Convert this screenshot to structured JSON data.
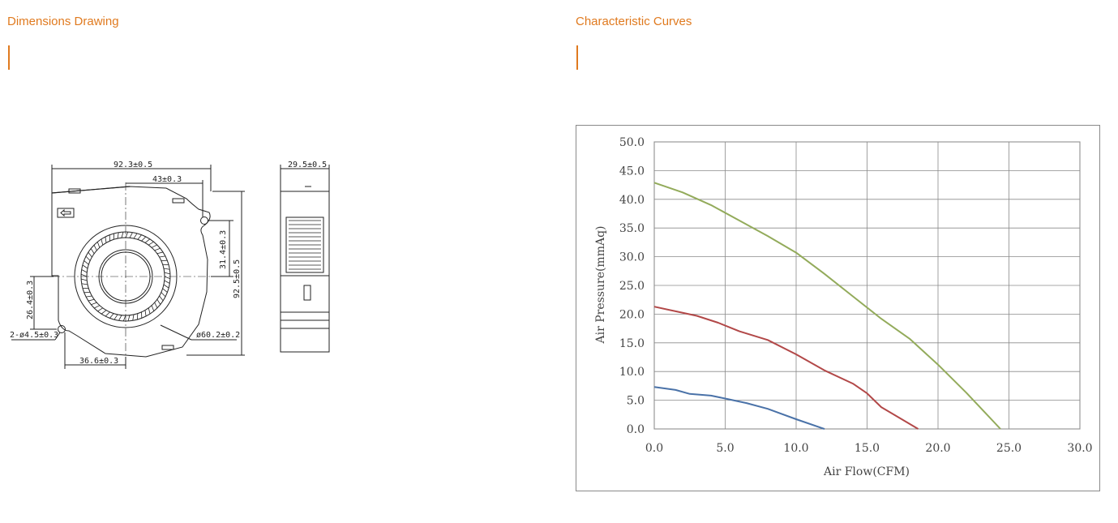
{
  "left_section": {
    "title": "Dimensions Drawing"
  },
  "right_section": {
    "title": "Characteristic Curves"
  },
  "accent_color": "#e07a1f",
  "drawing": {
    "dim_width": "92.3±0.5",
    "dim_top": "43±0.3",
    "dim_right_inner": "31.4±0.3",
    "dim_height": "92.5±0.5",
    "dim_left": "26.4±0.3",
    "dim_holes": "2-ø4.5±0.3",
    "dim_bottom": "36.6±0.3",
    "dim_diameter": "ø60.2±0.2",
    "dim_side_width": "29.5±0.5"
  },
  "chart_data": {
    "type": "line",
    "xlabel": "Air Flow(CFM)",
    "ylabel": "Air Pressure(mmAq)",
    "xlim": [
      0,
      30
    ],
    "ylim": [
      0,
      50
    ],
    "xticks": [
      "0.0",
      "5.0",
      "10.0",
      "15.0",
      "20.0",
      "25.0",
      "30.0"
    ],
    "yticks": [
      "0.0",
      "5.0",
      "10.0",
      "15.0",
      "20.0",
      "25.0",
      "30.0",
      "35.0",
      "40.0",
      "45.0",
      "50.0"
    ],
    "grid": true,
    "series": [
      {
        "color": "#4a72a8",
        "points": [
          [
            0,
            7.3
          ],
          [
            1.5,
            6.8
          ],
          [
            2.5,
            6.1
          ],
          [
            4,
            5.8
          ],
          [
            5,
            5.3
          ],
          [
            6.5,
            4.5
          ],
          [
            8,
            3.5
          ],
          [
            10,
            1.7
          ],
          [
            12,
            0
          ]
        ]
      },
      {
        "color": "#b24848",
        "points": [
          [
            0,
            21.3
          ],
          [
            1.5,
            20.5
          ],
          [
            3,
            19.7
          ],
          [
            4.5,
            18.5
          ],
          [
            6,
            17
          ],
          [
            8,
            15.5
          ],
          [
            10,
            13
          ],
          [
            12,
            10.2
          ],
          [
            14,
            7.9
          ],
          [
            15,
            6.2
          ],
          [
            16,
            3.8
          ],
          [
            18.6,
            0
          ]
        ]
      },
      {
        "color": "#93ab5b",
        "points": [
          [
            0,
            42.9
          ],
          [
            2,
            41.2
          ],
          [
            4,
            39
          ],
          [
            6,
            36.3
          ],
          [
            8,
            33.6
          ],
          [
            10,
            30.7
          ],
          [
            12,
            27
          ],
          [
            14,
            23.1
          ],
          [
            16,
            19.2
          ],
          [
            18,
            15.7
          ],
          [
            20,
            11.2
          ],
          [
            22,
            6.3
          ],
          [
            24.4,
            0
          ]
        ]
      }
    ]
  }
}
